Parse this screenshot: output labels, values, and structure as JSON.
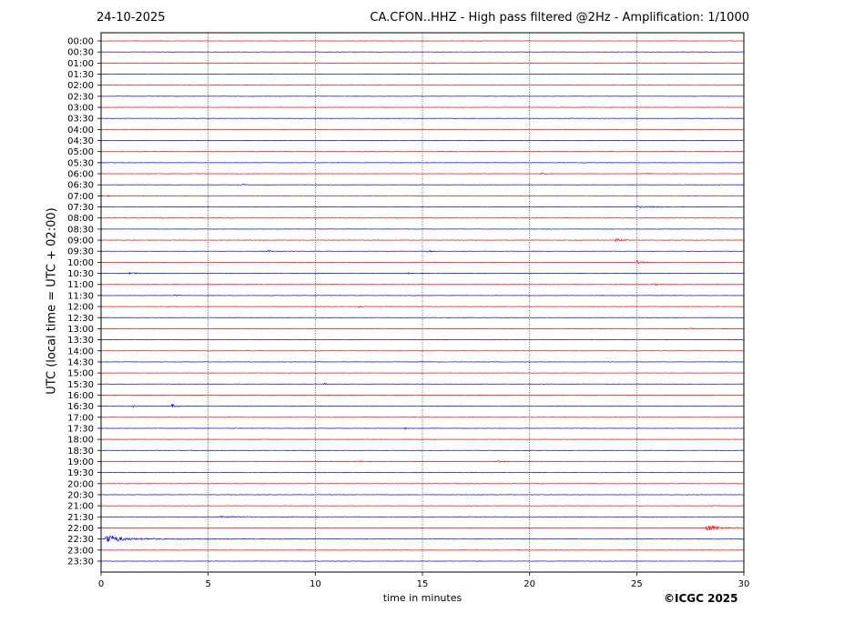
{
  "header": {
    "date": "24-10-2025",
    "title": "CA.CFON..HHZ - High pass filtered @2Hz - Amplification: 1/1000"
  },
  "footer": {
    "copyright": "©ICGC 2025"
  },
  "chart_data": {
    "type": "line",
    "title": "CA.CFON..HHZ - High pass filtered @2Hz - Amplification: 1/1000",
    "xlabel": "time in minutes",
    "ylabel": "UTC (local time = UTC + 02:00)",
    "xlim": [
      0,
      30
    ],
    "xticks": [
      0,
      5,
      10,
      15,
      20,
      25,
      30
    ],
    "vertical_grid_minutes": [
      5,
      10,
      15,
      20,
      25
    ],
    "grid": "dotted vertical lines at 5-minute intervals",
    "trace_colors": [
      "#ff0000",
      "#0000ff"
    ],
    "row_labels": [
      "00:00",
      "00:30",
      "01:00",
      "01:30",
      "02:00",
      "02:30",
      "03:00",
      "03:30",
      "04:00",
      "04:30",
      "05:00",
      "05:30",
      "06:00",
      "06:30",
      "07:00",
      "07:30",
      "08:00",
      "08:30",
      "09:00",
      "09:30",
      "10:00",
      "10:30",
      "11:00",
      "11:30",
      "12:00",
      "12:30",
      "13:00",
      "13:30",
      "14:00",
      "14:30",
      "15:00",
      "15:30",
      "16:00",
      "16:30",
      "17:00",
      "17:30",
      "18:00",
      "18:30",
      "19:00",
      "19:30",
      "20:00",
      "20:30",
      "21:00",
      "21:30",
      "22:00",
      "22:30",
      "23:00",
      "23:30"
    ],
    "events": [
      {
        "row": "06:00",
        "start_min": 20.5,
        "end_min": 22.0,
        "amplitude": 0.2
      },
      {
        "row": "06:00",
        "start_min": 25.5,
        "end_min": 26.2,
        "amplitude": 0.2
      },
      {
        "row": "06:30",
        "start_min": 6.6,
        "end_min": 7.4,
        "amplitude": 0.2
      },
      {
        "row": "07:00",
        "start_min": 0.3,
        "end_min": 0.9,
        "amplitude": 0.15
      },
      {
        "row": "07:30",
        "start_min": 25.0,
        "end_min": 29.5,
        "amplitude": 0.2
      },
      {
        "row": "08:00",
        "start_min": 2.6,
        "end_min": 4.6,
        "amplitude": 0.15
      },
      {
        "row": "09:00",
        "start_min": 24.0,
        "end_min": 24.6,
        "amplitude": 1.0
      },
      {
        "row": "09:30",
        "start_min": 7.8,
        "end_min": 8.6,
        "amplitude": 0.2
      },
      {
        "row": "09:30",
        "start_min": 15.2,
        "end_min": 16.4,
        "amplitude": 0.2
      },
      {
        "row": "10:00",
        "start_min": 25.0,
        "end_min": 25.6,
        "amplitude": 0.7
      },
      {
        "row": "10:30",
        "start_min": 1.3,
        "end_min": 3.0,
        "amplitude": 0.25
      },
      {
        "row": "10:30",
        "start_min": 14.3,
        "end_min": 14.5,
        "amplitude": 0.4
      },
      {
        "row": "11:00",
        "start_min": 25.8,
        "end_min": 26.8,
        "amplitude": 0.25
      },
      {
        "row": "11:30",
        "start_min": 3.4,
        "end_min": 4.2,
        "amplitude": 0.25
      },
      {
        "row": "12:00",
        "start_min": 12.0,
        "end_min": 12.8,
        "amplitude": 0.2
      },
      {
        "row": "13:00",
        "start_min": 27.5,
        "end_min": 28.2,
        "amplitude": 0.2
      },
      {
        "row": "15:30",
        "start_min": 10.4,
        "end_min": 11.0,
        "amplitude": 0.25
      },
      {
        "row": "16:30",
        "start_min": 3.3,
        "end_min": 3.8,
        "amplitude": 0.6
      },
      {
        "row": "16:30",
        "start_min": 1.5,
        "end_min": 2.0,
        "amplitude": 0.25
      },
      {
        "row": "17:30",
        "start_min": 14.2,
        "end_min": 14.4,
        "amplitude": 0.35
      },
      {
        "row": "19:00",
        "start_min": 18.5,
        "end_min": 19.6,
        "amplitude": 0.3
      },
      {
        "row": "19:00",
        "start_min": 12.0,
        "end_min": 13.0,
        "amplitude": 0.2
      },
      {
        "row": "21:00",
        "start_min": 28.5,
        "end_min": 29.2,
        "amplitude": 0.2
      },
      {
        "row": "21:30",
        "start_min": 5.5,
        "end_min": 12.0,
        "amplitude": 0.15
      },
      {
        "row": "22:00",
        "start_min": 28.2,
        "end_min": 30.0,
        "amplitude": 0.9
      },
      {
        "row": "22:30",
        "start_min": 0.2,
        "end_min": 2.5,
        "amplitude": 1.2
      },
      {
        "row": "22:30",
        "start_min": 2.5,
        "end_min": 27.0,
        "amplitude": 0.12
      }
    ]
  }
}
